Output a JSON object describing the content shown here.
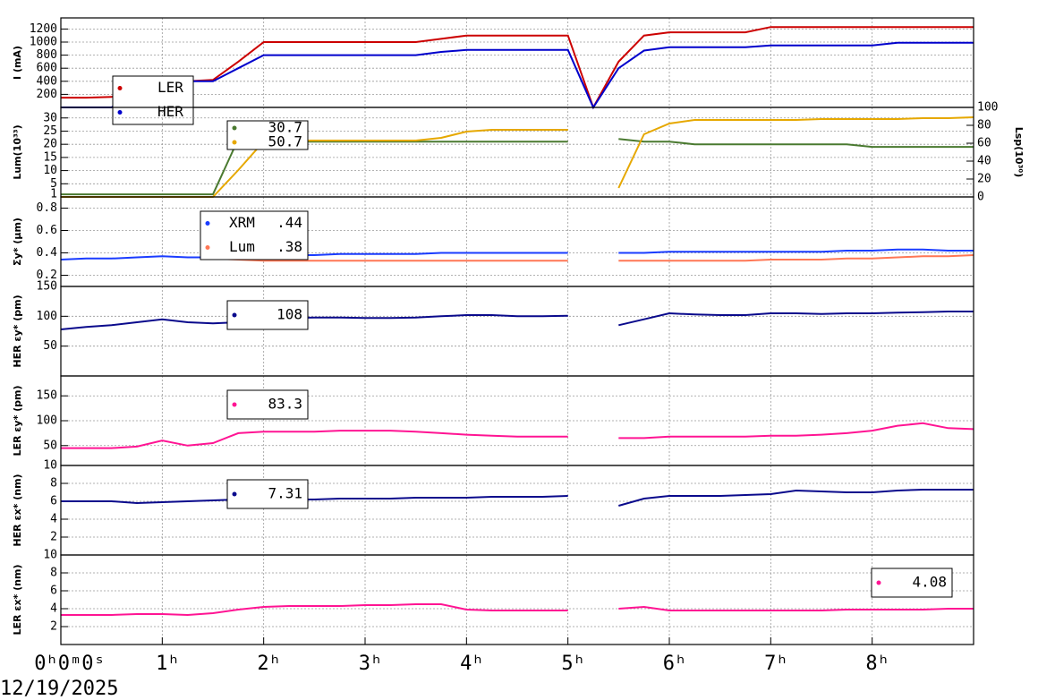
{
  "date": "12/19/2025",
  "chart_data": [
    {
      "type": "line",
      "ylabel": "I (mA)",
      "xlim": [
        0,
        9
      ],
      "ylim": [
        0,
        1370
      ],
      "yticks": [
        200,
        400,
        600,
        800,
        1000,
        1200
      ],
      "grid": true,
      "x": [
        0,
        0.25,
        0.5,
        0.75,
        1,
        1.25,
        1.5,
        1.75,
        2,
        2.25,
        2.5,
        2.75,
        3,
        3.25,
        3.5,
        3.75,
        4,
        4.25,
        4.5,
        4.75,
        5,
        5.25,
        5.5,
        5.75,
        6,
        6.25,
        6.5,
        6.75,
        7,
        7.25,
        7.5,
        7.75,
        8,
        8.25,
        8.5,
        8.75,
        9
      ],
      "series": [
        {
          "name": "LER",
          "color": "#cc0000",
          "values": [
            150,
            150,
            160,
            300,
            400,
            400,
            420,
            700,
            1000,
            1000,
            1000,
            1000,
            1000,
            1000,
            1000,
            1050,
            1100,
            1100,
            1100,
            1100,
            1100,
            0,
            700,
            1100,
            1150,
            1150,
            1150,
            1150,
            1230,
            1230,
            1230,
            1230,
            1230,
            1230,
            1230,
            1230,
            1230
          ]
        },
        {
          "name": "HER",
          "color": "#0000cc",
          "values": [
            0,
            0,
            0,
            300,
            400,
            400,
            400,
            600,
            800,
            800,
            800,
            800,
            800,
            800,
            800,
            850,
            880,
            880,
            880,
            880,
            880,
            0,
            600,
            870,
            920,
            920,
            920,
            920,
            950,
            950,
            950,
            950,
            950,
            990,
            990,
            990,
            990
          ]
        }
      ]
    },
    {
      "type": "line",
      "ylabel": "Lum(10³³)",
      "y2label": "Lsp(10³⁰)",
      "xlim": [
        0,
        9
      ],
      "ylim": [
        0,
        34
      ],
      "yticks": [
        1,
        5,
        10,
        15,
        20,
        25,
        30
      ],
      "y2lim": [
        0,
        100
      ],
      "y2ticks": [
        0,
        20,
        40,
        60,
        80,
        100
      ],
      "grid": true,
      "legend_labels": [
        "30.7",
        "50.7"
      ],
      "x": [
        0,
        0.25,
        0.5,
        0.75,
        1,
        1.25,
        1.5,
        1.75,
        2,
        2.25,
        2.5,
        2.75,
        3,
        3.25,
        3.5,
        3.75,
        4,
        4.25,
        4.5,
        4.75,
        5,
        5.25,
        5.5,
        5.75,
        6,
        6.25,
        6.5,
        6.75,
        7,
        7.25,
        7.5,
        7.75,
        8,
        8.25,
        8.5,
        8.75,
        9
      ],
      "series": [
        {
          "color": "#4a7a30",
          "values": [
            1,
            1,
            1,
            1,
            1,
            1,
            1,
            22,
            21,
            21,
            21,
            21,
            21,
            21,
            21,
            21,
            21,
            21,
            21,
            21,
            21,
            null,
            22,
            21,
            21,
            20,
            20,
            20,
            20,
            20,
            20,
            20,
            19,
            19,
            19,
            19,
            19
          ]
        },
        {
          "color": "#e6a800",
          "axis": "y2",
          "values": [
            0,
            0,
            0,
            0,
            0,
            0,
            0,
            30,
            62,
            63,
            63,
            63,
            63,
            63,
            63,
            66,
            73,
            75,
            75,
            75,
            75,
            null,
            10,
            70,
            82,
            86,
            86,
            86,
            86,
            86,
            87,
            87,
            87,
            87,
            88,
            88,
            89
          ]
        }
      ]
    },
    {
      "type": "line",
      "ylabel": "Σy* (μm)",
      "xlim": [
        0,
        9
      ],
      "ylim": [
        0.1,
        0.9
      ],
      "yticks": [
        0.2,
        0.4,
        0.6,
        0.8
      ],
      "grid": true,
      "legend_labels": [
        ".44",
        ".38"
      ],
      "x": [
        0,
        0.25,
        0.5,
        0.75,
        1,
        1.25,
        1.5,
        1.75,
        2,
        2.25,
        2.5,
        2.75,
        3,
        3.25,
        3.5,
        3.75,
        4,
        4.25,
        4.5,
        4.75,
        5,
        5.25,
        5.5,
        5.75,
        6,
        6.25,
        6.5,
        6.75,
        7,
        7.25,
        7.5,
        7.75,
        8,
        8.25,
        8.5,
        8.75,
        9
      ],
      "series": [
        {
          "name": "XRM",
          "color": "#1a3cff",
          "values": [
            0.34,
            0.35,
            0.35,
            0.36,
            0.37,
            0.36,
            0.36,
            0.37,
            0.38,
            0.38,
            0.38,
            0.39,
            0.39,
            0.39,
            0.39,
            0.4,
            0.4,
            0.4,
            0.4,
            0.4,
            0.4,
            null,
            0.4,
            0.4,
            0.41,
            0.41,
            0.41,
            0.41,
            0.41,
            0.41,
            0.41,
            0.42,
            0.42,
            0.43,
            0.43,
            0.42,
            0.42
          ]
        },
        {
          "name": "Lum",
          "color": "#ff7755",
          "values": [
            null,
            null,
            null,
            null,
            null,
            null,
            0.35,
            0.34,
            0.33,
            0.33,
            0.33,
            0.33,
            0.33,
            0.33,
            0.33,
            0.33,
            0.33,
            0.33,
            0.33,
            0.33,
            0.33,
            null,
            0.33,
            0.33,
            0.33,
            0.33,
            0.33,
            0.33,
            0.34,
            0.34,
            0.34,
            0.35,
            0.35,
            0.36,
            0.37,
            0.37,
            0.38
          ]
        }
      ]
    },
    {
      "type": "line",
      "ylabel": "HER εy* (pm)",
      "xlim": [
        0,
        9
      ],
      "ylim": [
        0,
        150
      ],
      "yticks": [
        50,
        100,
        150
      ],
      "grid": true,
      "legend_labels": [
        "108"
      ],
      "x": [
        0,
        0.25,
        0.5,
        0.75,
        1,
        1.25,
        1.5,
        1.75,
        2,
        2.25,
        2.5,
        2.75,
        3,
        3.25,
        3.5,
        3.75,
        4,
        4.25,
        4.5,
        4.75,
        5,
        5.25,
        5.5,
        5.75,
        6,
        6.25,
        6.5,
        6.75,
        7,
        7.25,
        7.5,
        7.75,
        8,
        8.25,
        8.5,
        8.75,
        9
      ],
      "series": [
        {
          "color": "#0a0a8c",
          "values": [
            78,
            82,
            85,
            90,
            95,
            90,
            88,
            90,
            95,
            97,
            98,
            98,
            97,
            97,
            98,
            100,
            102,
            102,
            100,
            100,
            101,
            null,
            85,
            95,
            105,
            103,
            102,
            102,
            105,
            105,
            104,
            105,
            105,
            106,
            107,
            108,
            108
          ]
        }
      ]
    },
    {
      "type": "line",
      "ylabel": "LER εy* (pm)",
      "xlim": [
        0,
        9
      ],
      "ylim": [
        10,
        190
      ],
      "yticks": [
        10,
        50,
        100,
        150
      ],
      "grid": true,
      "legend_labels": [
        "83.3"
      ],
      "x": [
        0,
        0.25,
        0.5,
        0.75,
        1,
        1.25,
        1.5,
        1.75,
        2,
        2.25,
        2.5,
        2.75,
        3,
        3.25,
        3.5,
        3.75,
        4,
        4.25,
        4.5,
        4.75,
        5,
        5.25,
        5.5,
        5.75,
        6,
        6.25,
        6.5,
        6.75,
        7,
        7.25,
        7.5,
        7.75,
        8,
        8.25,
        8.5,
        8.75,
        9
      ],
      "series": [
        {
          "color": "#ff1493",
          "values": [
            45,
            45,
            45,
            48,
            60,
            50,
            55,
            75,
            78,
            78,
            78,
            80,
            80,
            80,
            78,
            75,
            72,
            70,
            68,
            68,
            68,
            null,
            65,
            65,
            68,
            68,
            68,
            68,
            70,
            70,
            72,
            75,
            80,
            90,
            95,
            85,
            83
          ]
        }
      ]
    },
    {
      "type": "line",
      "ylabel": "HER εx* (nm)",
      "xlim": [
        0,
        9
      ],
      "ylim": [
        0,
        10
      ],
      "yticks": [
        2,
        4,
        6,
        8
      ],
      "grid": true,
      "legend_labels": [
        "7.31"
      ],
      "x": [
        0,
        0.25,
        0.5,
        0.75,
        1,
        1.25,
        1.5,
        1.75,
        2,
        2.25,
        2.5,
        2.75,
        3,
        3.25,
        3.5,
        3.75,
        4,
        4.25,
        4.5,
        4.75,
        5,
        5.25,
        5.5,
        5.75,
        6,
        6.25,
        6.5,
        6.75,
        7,
        7.25,
        7.5,
        7.75,
        8,
        8.25,
        8.5,
        8.75,
        9
      ],
      "series": [
        {
          "color": "#0a0a8c",
          "values": [
            6.0,
            6.0,
            6.0,
            5.8,
            5.9,
            6.0,
            6.1,
            6.2,
            6.2,
            6.2,
            6.2,
            6.3,
            6.3,
            6.3,
            6.4,
            6.4,
            6.4,
            6.5,
            6.5,
            6.5,
            6.6,
            null,
            5.5,
            6.3,
            6.6,
            6.6,
            6.6,
            6.7,
            6.8,
            7.2,
            7.1,
            7.0,
            7.0,
            7.2,
            7.3,
            7.3,
            7.3
          ]
        }
      ]
    },
    {
      "type": "line",
      "ylabel": "LER εx* (nm)",
      "xlim": [
        0,
        9
      ],
      "ylim": [
        0,
        10
      ],
      "yticks": [
        2,
        4,
        6,
        8,
        10
      ],
      "grid": true,
      "legend_labels": [
        "4.08"
      ],
      "xticks": [
        {
          "value": 0,
          "label": "0ʰ0ᵐ0ˢ"
        },
        {
          "value": 1,
          "label": "1ʰ"
        },
        {
          "value": 2,
          "label": "2ʰ"
        },
        {
          "value": 3,
          "label": "3ʰ"
        },
        {
          "value": 4,
          "label": "4ʰ"
        },
        {
          "value": 5,
          "label": "5ʰ"
        },
        {
          "value": 6,
          "label": "6ʰ"
        },
        {
          "value": 7,
          "label": "7ʰ"
        },
        {
          "value": 8,
          "label": "8ʰ"
        }
      ],
      "x": [
        0,
        0.25,
        0.5,
        0.75,
        1,
        1.25,
        1.5,
        1.75,
        2,
        2.25,
        2.5,
        2.75,
        3,
        3.25,
        3.5,
        3.75,
        4,
        4.25,
        4.5,
        4.75,
        5,
        5.25,
        5.5,
        5.75,
        6,
        6.25,
        6.5,
        6.75,
        7,
        7.25,
        7.5,
        7.75,
        8,
        8.25,
        8.5,
        8.75,
        9
      ],
      "series": [
        {
          "color": "#ff1493",
          "values": [
            3.3,
            3.3,
            3.3,
            3.4,
            3.4,
            3.3,
            3.5,
            3.9,
            4.2,
            4.3,
            4.3,
            4.3,
            4.4,
            4.4,
            4.5,
            4.5,
            3.9,
            3.8,
            3.8,
            3.8,
            3.8,
            null,
            4.0,
            4.2,
            3.8,
            3.8,
            3.8,
            3.8,
            3.8,
            3.8,
            3.8,
            3.9,
            3.9,
            3.9,
            3.9,
            4.0,
            4.0
          ]
        }
      ]
    }
  ]
}
